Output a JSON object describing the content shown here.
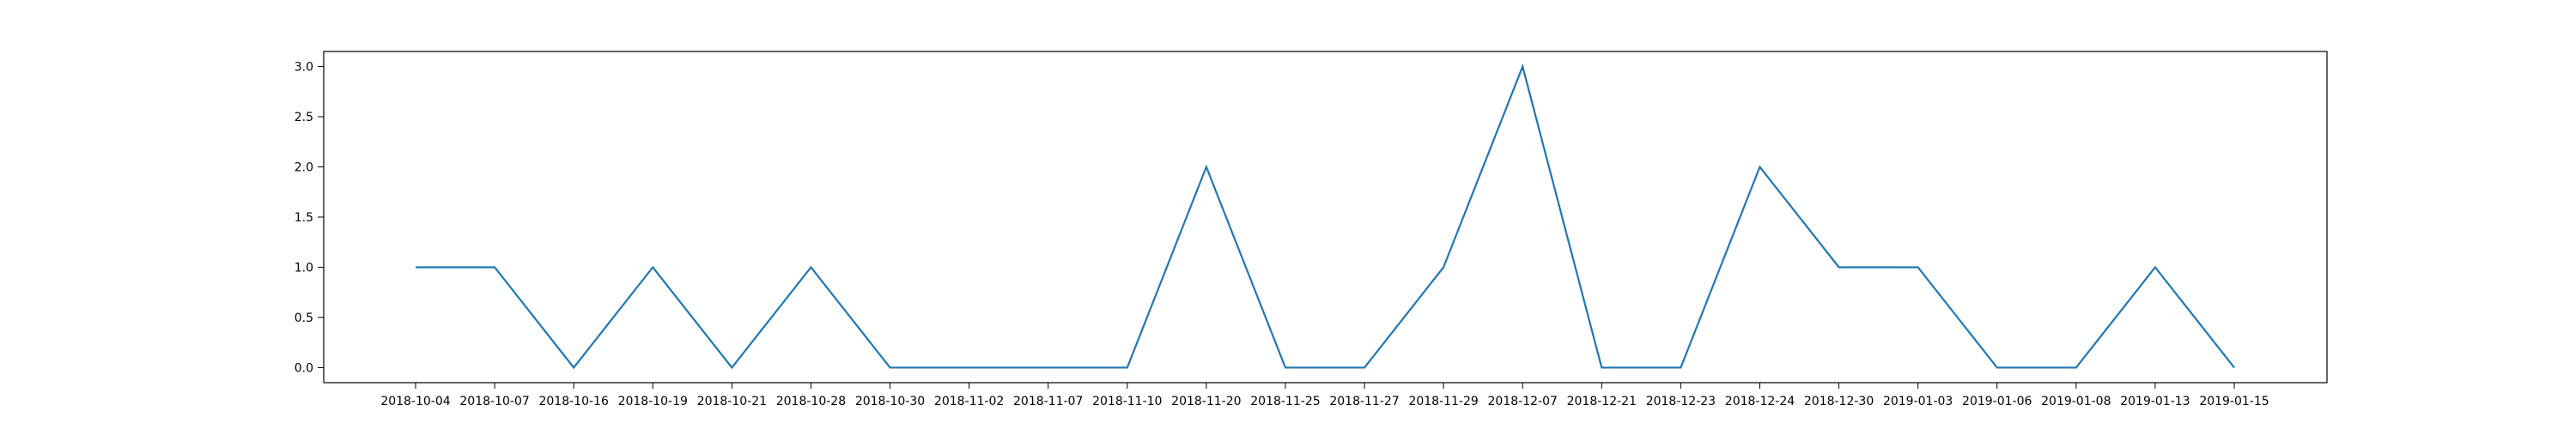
{
  "chart_data": {
    "type": "line",
    "categories": [
      "2018-10-04",
      "2018-10-07",
      "2018-10-16",
      "2018-10-19",
      "2018-10-21",
      "2018-10-28",
      "2018-10-30",
      "2018-11-02",
      "2018-11-07",
      "2018-11-10",
      "2018-11-20",
      "2018-11-25",
      "2018-11-27",
      "2018-11-29",
      "2018-12-07",
      "2018-12-21",
      "2018-12-23",
      "2018-12-24",
      "2018-12-30",
      "2019-01-03",
      "2019-01-06",
      "2019-01-08",
      "2019-01-13",
      "2019-01-15"
    ],
    "values": [
      1,
      1,
      0,
      1,
      0,
      1,
      0,
      0,
      0,
      0,
      2,
      0,
      0,
      1,
      3,
      0,
      0,
      2,
      1,
      1,
      0,
      0,
      1,
      0
    ],
    "yticks": [
      "0.0",
      "0.5",
      "1.0",
      "1.5",
      "2.0",
      "2.5",
      "3.0"
    ],
    "ylim": [
      -0.15,
      3.15
    ],
    "grid": false,
    "colors": {
      "line": "#1f77b4",
      "axes": "#000000"
    }
  }
}
